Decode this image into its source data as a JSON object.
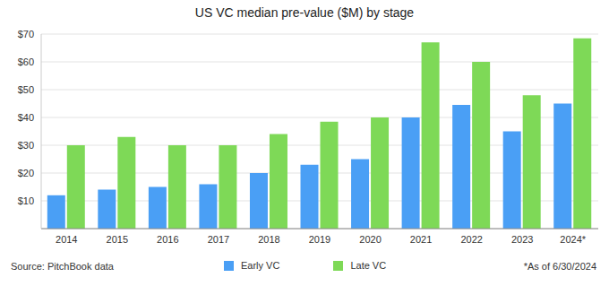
{
  "chart_data": {
    "type": "bar",
    "title": "US VC median pre-value ($M) by stage",
    "categories": [
      "2014",
      "2015",
      "2016",
      "2017",
      "2018",
      "2019",
      "2020",
      "2021",
      "2022",
      "2023",
      "2024*"
    ],
    "series": [
      {
        "name": "Early VC",
        "color": "#4a9ff5",
        "values": [
          12,
          14,
          15,
          16,
          20,
          23,
          25,
          40,
          44.5,
          35,
          45
        ]
      },
      {
        "name": "Late VC",
        "color": "#7ed957",
        "values": [
          30,
          33,
          30,
          30,
          34,
          38.5,
          40,
          67,
          60,
          48,
          68.5
        ]
      }
    ],
    "ylim": [
      0,
      70
    ],
    "yticks": [
      {
        "value": 10,
        "label": "$10"
      },
      {
        "value": 20,
        "label": "$20"
      },
      {
        "value": 30,
        "label": "$30"
      },
      {
        "value": 40,
        "label": "$40"
      },
      {
        "value": 50,
        "label": "$50"
      },
      {
        "value": 60,
        "label": "$60"
      },
      {
        "value": 70,
        "label": "$70"
      }
    ],
    "grid": true,
    "legend": "bottom",
    "annotations": [
      "Source: PitchBook data",
      "*As of 6/30/2024"
    ]
  }
}
